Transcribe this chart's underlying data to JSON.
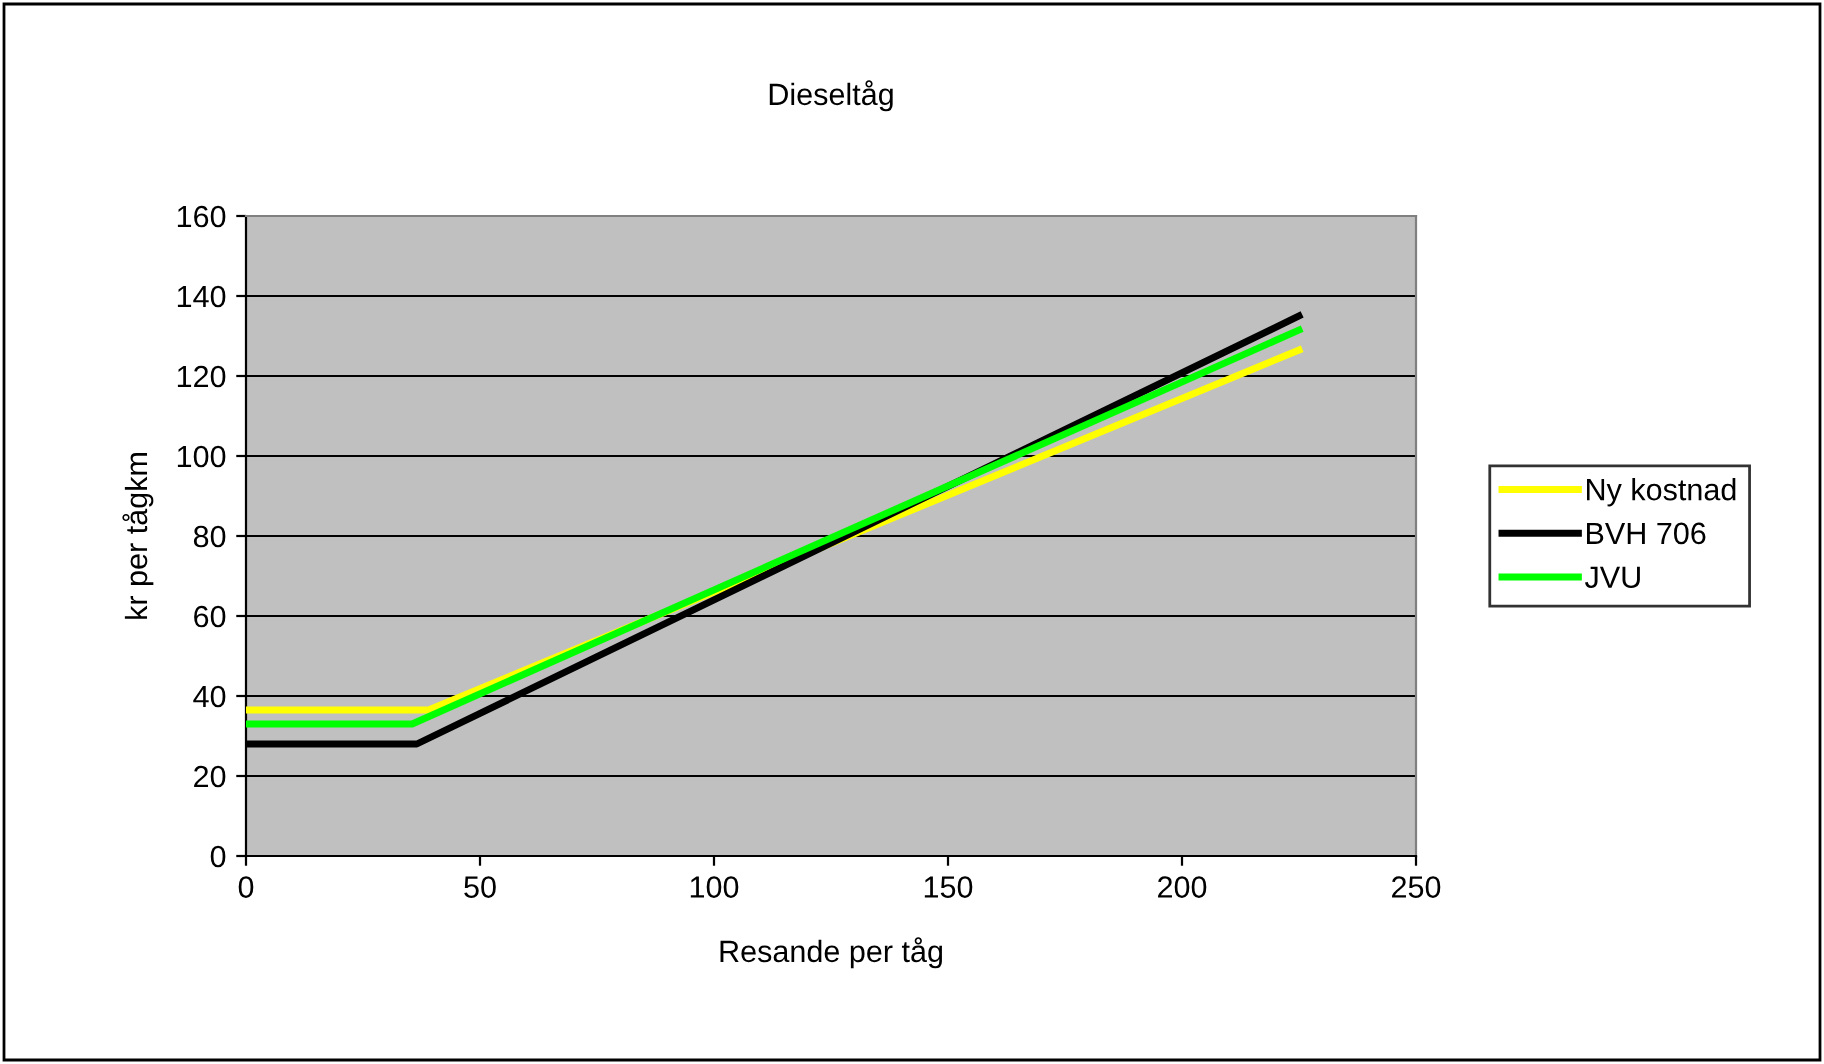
{
  "chart_data": {
    "type": "line",
    "title": "Dieseltåg",
    "xlabel": "Resande per tåg",
    "ylabel": "kr per tågkm",
    "xlim": [
      0,
      250
    ],
    "xticks": [
      0,
      50,
      100,
      150,
      200,
      250
    ],
    "ylim": [
      0,
      160
    ],
    "yticks": [
      0,
      20,
      40,
      60,
      80,
      100,
      120,
      140,
      160
    ],
    "grid": "y",
    "legend": "right",
    "marker": "none",
    "line_style": "solid",
    "series": [
      {
        "name": "Ny kostnad",
        "color": "#ffff00",
        "x": [
          0,
          39,
          225
        ],
        "values": [
          36.5,
          36.5,
          126.5
        ]
      },
      {
        "name": "BVH 706",
        "color": "#000000",
        "x": [
          0,
          36.5,
          225
        ],
        "values": [
          28,
          28,
          135
        ]
      },
      {
        "name": "JVU",
        "color": "#00ff00",
        "x": [
          0,
          35.5,
          225
        ],
        "values": [
          33,
          33,
          131.5
        ]
      }
    ]
  }
}
